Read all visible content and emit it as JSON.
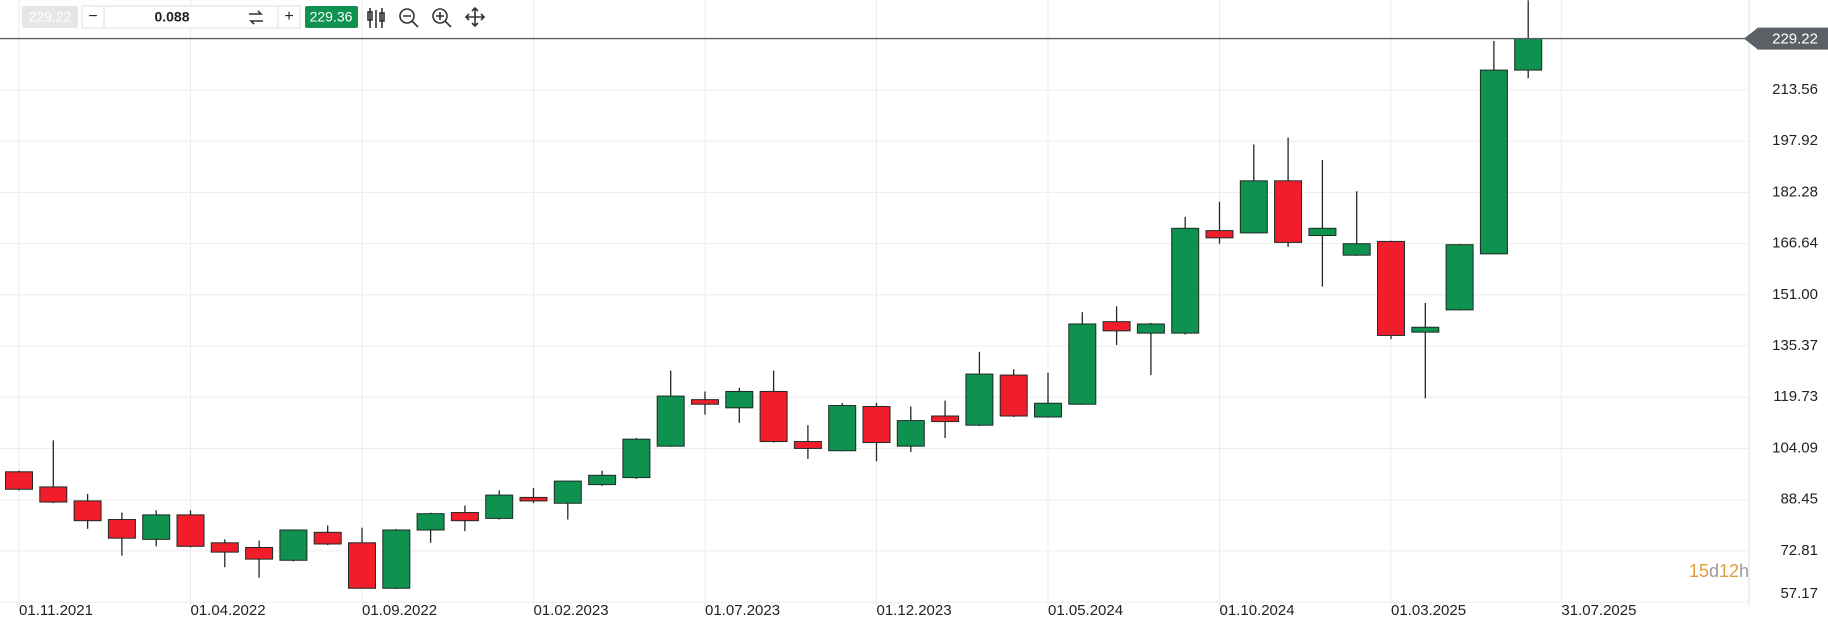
{
  "chart_data": {
    "type": "candlestick",
    "x": [
      "01.11.2021",
      "01.12.2021",
      "01.01.2022",
      "01.02.2022",
      "01.03.2022",
      "01.04.2022",
      "01.05.2022",
      "01.06.2022",
      "01.07.2022",
      "01.08.2022",
      "01.09.2022",
      "01.10.2022",
      "01.11.2022",
      "01.12.2022",
      "01.01.2023",
      "01.02.2023",
      "01.03.2023",
      "01.04.2023",
      "01.05.2023",
      "01.06.2023",
      "01.07.2023",
      "01.08.2023",
      "01.09.2023",
      "01.10.2023",
      "01.11.2023",
      "01.12.2023",
      "01.01.2024",
      "01.02.2024",
      "01.03.2024",
      "01.04.2024",
      "01.05.2024",
      "01.06.2024",
      "01.07.2024",
      "01.08.2024",
      "01.09.2024",
      "01.10.2024",
      "01.11.2024",
      "01.12.2024",
      "01.01.2025",
      "01.02.2025",
      "01.03.2025",
      "01.04.2025",
      "01.05.2025",
      "01.06.2025",
      "01.07.2025"
    ],
    "open": [
      96.97,
      92.35,
      88.08,
      82.4,
      76.35,
      83.82,
      75.29,
      73.87,
      69.96,
      78.49,
      75.29,
      61.42,
      79.2,
      84.53,
      82.75,
      89.15,
      87.37,
      93.06,
      95.2,
      104.8,
      119.0,
      116.5,
      121.5,
      106.2,
      103.4,
      116.9,
      104.8,
      114.0,
      111.2,
      126.5,
      113.7,
      117.6,
      142.8,
      139.3,
      139.3,
      170.6,
      169.9,
      185.8,
      169.1,
      163.1,
      167.3,
      139.6,
      146.4,
      163.5,
      219.6
    ],
    "high": [
      97.3,
      106.57,
      90.22,
      84.53,
      85.24,
      85.2,
      76.35,
      76.0,
      79.4,
      80.6,
      79.91,
      79.5,
      84.5,
      86.66,
      91.3,
      91.99,
      94.3,
      97.33,
      107.3,
      127.9,
      121.5,
      122.6,
      127.9,
      111.2,
      118.0,
      118.0,
      116.9,
      118.7,
      133.6,
      128.3,
      127.2,
      145.7,
      147.5,
      142.4,
      174.8,
      179.4,
      196.9,
      199.0,
      192.2,
      182.6,
      167.5,
      148.5,
      166.5,
      228.5,
      240.9
    ],
    "low": [
      91.3,
      87.4,
      79.55,
      71.38,
      74.22,
      73.9,
      67.83,
      64.62,
      69.6,
      74.6,
      61.4,
      61.2,
      75.29,
      78.84,
      82.4,
      87.4,
      82.4,
      92.7,
      94.8,
      104.6,
      114.4,
      111.9,
      105.9,
      100.9,
      103.2,
      100.2,
      103.0,
      107.3,
      110.9,
      113.7,
      113.5,
      117.4,
      135.7,
      126.5,
      138.9,
      166.6,
      169.7,
      165.6,
      153.5,
      162.9,
      137.5,
      119.4,
      146.2,
      163.3,
      217.1
    ],
    "close": [
      91.64,
      87.73,
      82.04,
      76.71,
      83.82,
      74.22,
      72.45,
      70.31,
      79.2,
      74.93,
      61.42,
      79.2,
      84.18,
      82.04,
      89.86,
      88.08,
      94.13,
      95.9,
      106.93,
      120.08,
      117.6,
      121.5,
      106.2,
      104.1,
      117.2,
      105.9,
      112.6,
      112.3,
      126.8,
      114.0,
      117.9,
      142.1,
      140.0,
      142.1,
      171.3,
      168.4,
      185.8,
      167.0,
      171.3,
      166.6,
      138.6,
      141.1,
      166.3,
      219.6,
      229.22
    ],
    "up_color": "#0f9150",
    "down_color": "#f11d2b",
    "ylim": [
      56,
      241
    ],
    "yticks": [
      57.17,
      72.81,
      88.45,
      104.09,
      119.73,
      135.37,
      {
        "value": 151,
        "label": "151.00"
      },
      166.64,
      182.28,
      197.92,
      213.56
    ],
    "xticks": [
      "01.11.2021",
      "01.04.2022",
      "01.09.2022",
      "01.02.2023",
      "01.07.2023",
      "01.12.2023",
      "01.05.2024",
      "01.10.2024",
      "01.03.2025",
      "31.07.2025"
    ],
    "price_line": 229.22,
    "grid": true
  },
  "toolbar": {
    "bid": "229.22",
    "minus": "−",
    "step": "0.088",
    "plus": "+",
    "ask": "229.36"
  },
  "countdown": [
    "15",
    "d",
    "12",
    "h"
  ]
}
